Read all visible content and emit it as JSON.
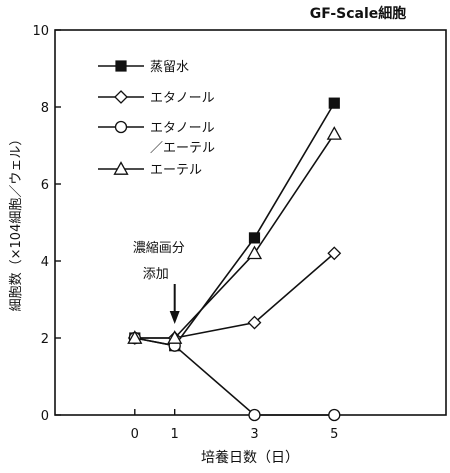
{
  "chart_data": {
    "type": "line",
    "title": "GF-Scale細胞",
    "xlabel": "培養日数（日）",
    "ylabel": "細胞数（×104細胞／ウェル）",
    "x": [
      0,
      1,
      3,
      5
    ],
    "x_tick_labels": [
      "0",
      "1",
      "3",
      "5"
    ],
    "ylim": [
      0,
      10
    ],
    "y_ticks": [
      0,
      2,
      4,
      6,
      8,
      10
    ],
    "y_tick_labels": [
      "0",
      "2",
      "4",
      "6",
      "8",
      "10"
    ],
    "grid": false,
    "legend_position": "top-left",
    "annotation": {
      "lines": [
        "濃縮画分",
        "添加"
      ],
      "x": 1
    },
    "series": [
      {
        "name": "蒸留水",
        "marker": "filled-square",
        "values": [
          2.0,
          1.8,
          4.6,
          8.1
        ]
      },
      {
        "name": "エタノール",
        "marker": "open-diamond",
        "values": [
          2.0,
          2.0,
          2.4,
          4.2
        ]
      },
      {
        "name": "エタノール\n／エーテル",
        "name_lines": [
          "エタノール",
          "／エーテル"
        ],
        "marker": "open-circle",
        "values": [
          2.0,
          1.8,
          0.0,
          0.0
        ]
      },
      {
        "name": "エーテル",
        "marker": "open-triangle",
        "values": [
          2.0,
          2.0,
          4.2,
          7.3
        ]
      }
    ]
  }
}
